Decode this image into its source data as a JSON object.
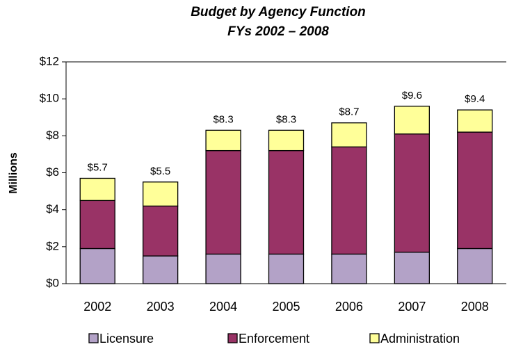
{
  "chart_data": {
    "type": "stacked_bar",
    "title": [
      "Budget by Agency Function",
      "FYs 2002 – 2008"
    ],
    "y_label": "Millions",
    "categories": [
      "2002",
      "2003",
      "2004",
      "2005",
      "2006",
      "2007",
      "2008"
    ],
    "series": [
      {
        "name": "Licensure",
        "color": "#b3a2c7",
        "values": [
          1.9,
          1.5,
          1.6,
          1.6,
          1.6,
          1.7,
          1.9
        ]
      },
      {
        "name": "Enforcement",
        "color": "#993366",
        "values": [
          2.6,
          2.7,
          5.6,
          5.6,
          5.8,
          6.4,
          6.3
        ]
      },
      {
        "name": "Administration",
        "color": "#ffff99",
        "values": [
          1.2,
          1.3,
          1.1,
          1.1,
          1.3,
          1.5,
          1.2
        ]
      }
    ],
    "totals": [
      5.7,
      5.5,
      8.3,
      8.3,
      8.7,
      9.6,
      9.4
    ],
    "total_labels": [
      "$5.7",
      "$5.5",
      "$8.3",
      "$8.3",
      "$8.7",
      "$9.6",
      "$9.4"
    ],
    "ylim": [
      0,
      12
    ],
    "yticks": [
      {
        "value": 0,
        "label": "$0"
      },
      {
        "value": 2,
        "label": "$2"
      },
      {
        "value": 4,
        "label": "$4"
      },
      {
        "value": 6,
        "label": "$6"
      },
      {
        "value": 8,
        "label": "$8"
      },
      {
        "value": 10,
        "label": "$10"
      },
      {
        "value": 12,
        "label": "$12"
      }
    ],
    "legend": "bottom"
  }
}
